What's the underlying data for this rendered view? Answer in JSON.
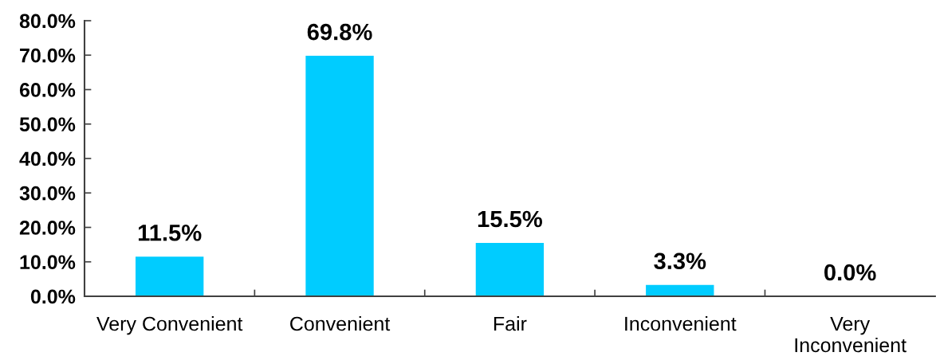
{
  "chart_data": {
    "type": "bar",
    "categories": [
      "Very Convenient",
      "Convenient",
      "Fair",
      "Inconvenient",
      "Very\nInconvenient"
    ],
    "values": [
      11.5,
      69.8,
      15.5,
      3.3,
      0.0
    ],
    "color": "#00ccff",
    "value_labels": [
      "11.5%",
      "69.8%",
      "15.5%",
      "3.3%",
      "0.0%"
    ],
    "ylim": [
      0,
      80
    ],
    "yticks": [
      {
        "value": 0,
        "label": "0.0%"
      },
      {
        "value": 10,
        "label": "10.0%"
      },
      {
        "value": 20,
        "label": "20.0%"
      },
      {
        "value": 30,
        "label": "30.0%"
      },
      {
        "value": 40,
        "label": "40.0%"
      },
      {
        "value": 50,
        "label": "50.0%"
      },
      {
        "value": 60,
        "label": "60.0%"
      },
      {
        "value": 70,
        "label": "70.0%"
      },
      {
        "value": 80,
        "label": "80.0%"
      }
    ]
  }
}
